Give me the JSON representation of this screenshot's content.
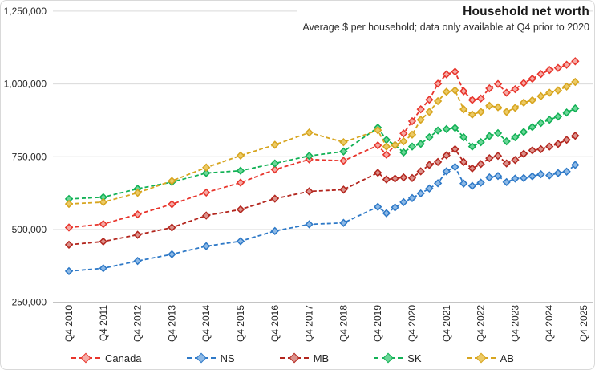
{
  "header": {
    "title": "Household net worth",
    "subtitle": "Average $ per household; data only available at Q4 prior to 2020"
  },
  "chart_data": {
    "type": "line",
    "title": "Household net worth",
    "subtitle": "Average $ per household; data only available at Q4 prior to 2020",
    "line_style": "dashed",
    "marker": "diamond",
    "grid": "horizontal",
    "legend_position": "bottom",
    "y_axis": {
      "tick_labels": [
        "250,000",
        "500,000",
        "750,000",
        "1,000,000",
        "1,250,000"
      ],
      "tick_values": [
        250000,
        500000,
        750000,
        1000000,
        1250000
      ],
      "range": [
        250000,
        1250000
      ]
    },
    "x_axis": {
      "tick_labels": [
        "Q4 2010",
        "Q4 2011",
        "Q4 2012",
        "Q4 2013",
        "Q4 2014",
        "Q4 2015",
        "Q4 2016",
        "Q4 2017",
        "Q4 2018",
        "Q4 2019",
        "Q4 2020",
        "Q4 2021",
        "Q4 2022",
        "Q4 2023",
        "Q4 2024",
        "Q4 2025"
      ],
      "tick_offsets_quarters": [
        0,
        4,
        8,
        12,
        16,
        20,
        24,
        28,
        32,
        36,
        40,
        44,
        48,
        52,
        56,
        60
      ]
    },
    "categories": [
      "Q4 2010",
      "Q4 2011",
      "Q4 2012",
      "Q4 2013",
      "Q4 2014",
      "Q4 2015",
      "Q4 2016",
      "Q4 2017",
      "Q4 2018",
      "Q4 2019",
      "Q1 2020",
      "Q2 2020",
      "Q3 2020",
      "Q4 2020",
      "Q1 2021",
      "Q2 2021",
      "Q3 2021",
      "Q4 2021",
      "Q1 2022",
      "Q2 2022",
      "Q3 2022",
      "Q4 2022",
      "Q1 2023",
      "Q2 2023",
      "Q3 2023",
      "Q4 2023",
      "Q1 2024",
      "Q2 2024",
      "Q3 2024",
      "Q4 2024",
      "Q1 2025",
      "Q2 2025",
      "Q3 2025"
    ],
    "x_offsets_quarters": [
      0,
      4,
      8,
      12,
      16,
      20,
      24,
      28,
      32,
      36,
      37,
      38,
      39,
      40,
      41,
      42,
      43,
      44,
      45,
      46,
      47,
      48,
      49,
      50,
      51,
      52,
      53,
      54,
      55,
      56,
      57,
      58,
      59
    ],
    "series": [
      {
        "name": "Canada",
        "color": "#e8352c",
        "marker_fill": "#f5aba6",
        "values": [
          507000,
          519000,
          552000,
          587000,
          627000,
          661000,
          706000,
          741000,
          736000,
          789000,
          757000,
          790000,
          830000,
          872000,
          913000,
          946000,
          1001000,
          1033000,
          1042000,
          975000,
          945000,
          950000,
          985000,
          1000000,
          970000,
          982000,
          1003000,
          1018000,
          1034000,
          1048000,
          1055000,
          1066000,
          1078000
        ]
      },
      {
        "name": "NS",
        "color": "#2e79c7",
        "marker_fill": "#8db9e6",
        "values": [
          357000,
          367000,
          392000,
          415000,
          443000,
          460000,
          495000,
          518000,
          523000,
          578000,
          556000,
          576000,
          594000,
          608000,
          624000,
          641000,
          659000,
          700000,
          715000,
          658000,
          650000,
          661000,
          679000,
          684000,
          663000,
          675000,
          677000,
          683000,
          690000,
          686000,
          694000,
          699000,
          722000
        ]
      },
      {
        "name": "MB",
        "color": "#b3261e",
        "marker_fill": "#dc928c",
        "values": [
          448000,
          459000,
          482000,
          507000,
          548000,
          569000,
          606000,
          631000,
          637000,
          695000,
          672000,
          675000,
          679000,
          677000,
          700000,
          722000,
          732000,
          755000,
          776000,
          732000,
          710000,
          725000,
          745000,
          753000,
          727000,
          739000,
          760000,
          772000,
          776000,
          785000,
          794000,
          808000,
          822000
        ]
      },
      {
        "name": "SK",
        "color": "#12b155",
        "marker_fill": "#6cd698",
        "values": [
          605000,
          611000,
          640000,
          663000,
          694000,
          702000,
          727000,
          753000,
          768000,
          850000,
          808000,
          790000,
          765000,
          785000,
          794000,
          817000,
          840000,
          845000,
          849000,
          817000,
          785000,
          800000,
          821000,
          831000,
          803000,
          817000,
          835000,
          852000,
          866000,
          877000,
          888000,
          902000,
          916000
        ]
      },
      {
        "name": "AB",
        "color": "#d7a51f",
        "marker_fill": "#ecca66",
        "values": [
          588000,
          594000,
          626000,
          667000,
          713000,
          754000,
          791000,
          833000,
          800000,
          841000,
          785000,
          790000,
          803000,
          826000,
          877000,
          904000,
          941000,
          973000,
          978000,
          913000,
          895000,
          904000,
          925000,
          920000,
          904000,
          918000,
          936000,
          944000,
          958000,
          970000,
          978000,
          991000,
          1007000
        ]
      }
    ]
  }
}
